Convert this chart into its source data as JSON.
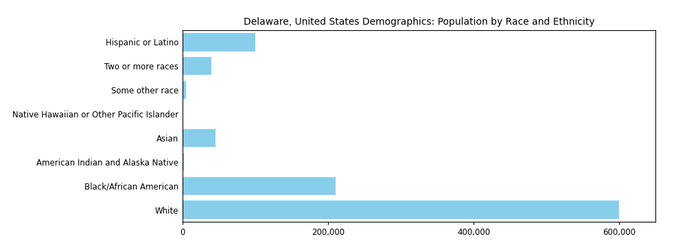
{
  "title": "Delaware, United States Demographics: Population by Race and Ethnicity",
  "categories": [
    "White",
    "Black/African American",
    "American Indian and Alaska Native",
    "Asian",
    "Native Hawaiian or Other Pacific Islander",
    "Some other race",
    "Two or more races",
    "Hispanic or Latino"
  ],
  "values": [
    600000,
    210000,
    2000,
    45000,
    800,
    5000,
    40000,
    100000
  ],
  "bar_color": "#87CEEB",
  "xlim": [
    0,
    650000
  ],
  "xticks": [
    0,
    200000,
    400000,
    600000
  ],
  "xtick_labels": [
    "0",
    "200,000",
    "400,000",
    "600,000"
  ],
  "title_fontsize": 10,
  "label_fontsize": 8.5,
  "tick_fontsize": 8.5,
  "background_color": "#ffffff",
  "bar_height": 0.75
}
